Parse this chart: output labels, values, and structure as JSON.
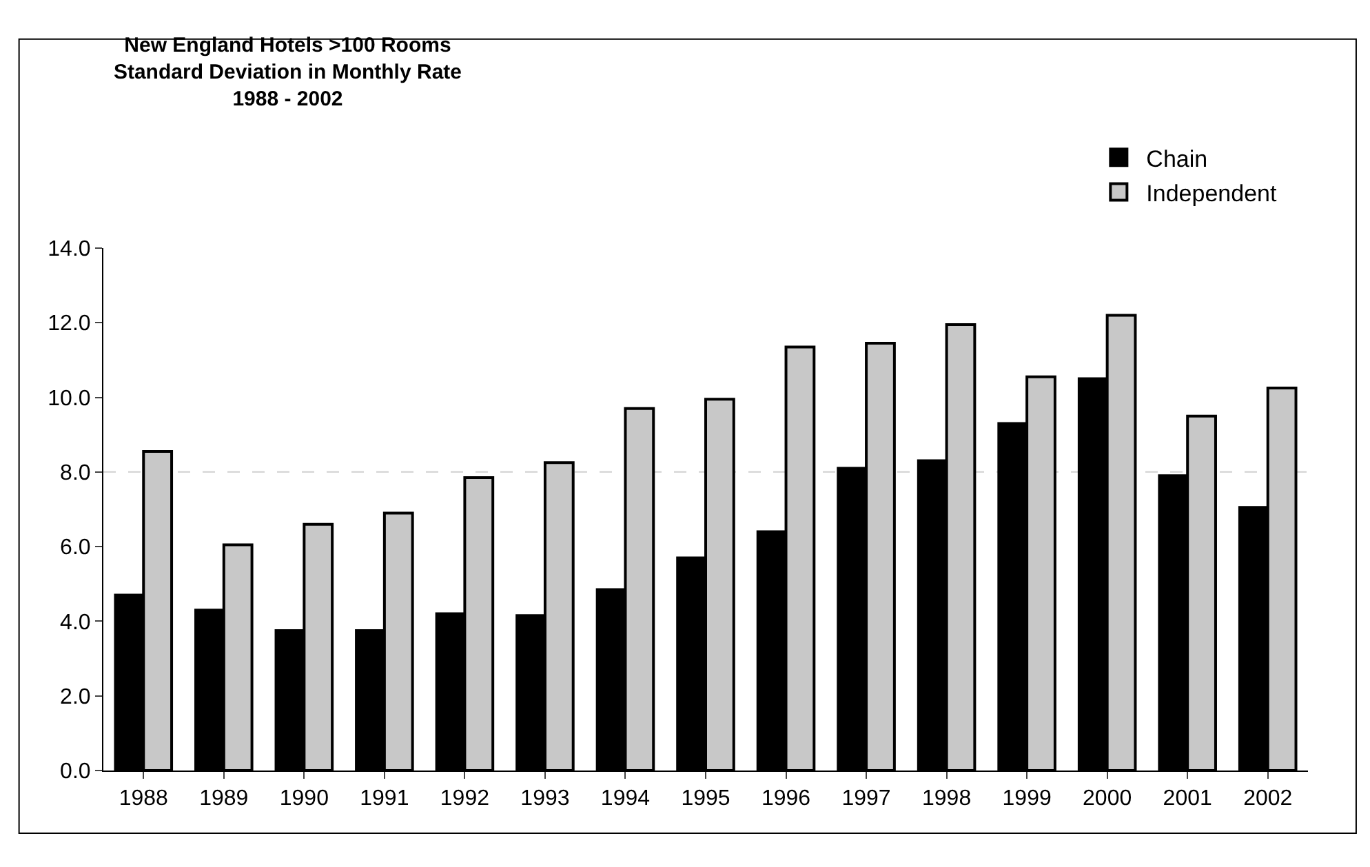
{
  "chart_data": {
    "type": "bar",
    "title": "New England Hotels >100 Rooms\nStandard Deviation in Monthly Rate\n1988 - 2002",
    "categories": [
      "1988",
      "1989",
      "1990",
      "1991",
      "1992",
      "1993",
      "1994",
      "1995",
      "1996",
      "1997",
      "1998",
      "1999",
      "2000",
      "2001",
      "2002"
    ],
    "series": [
      {
        "name": "Chain",
        "color": "#000000",
        "values": [
          4.7,
          4.3,
          3.75,
          3.75,
          4.2,
          4.15,
          4.85,
          5.7,
          6.4,
          8.1,
          8.3,
          9.3,
          10.5,
          7.9,
          7.05
        ]
      },
      {
        "name": "Independent",
        "color": "#c8c8c8",
        "values": [
          8.55,
          6.05,
          6.6,
          6.9,
          7.85,
          8.25,
          9.7,
          9.95,
          11.35,
          11.45,
          11.95,
          10.55,
          12.2,
          9.5,
          10.25
        ]
      }
    ],
    "ylim": [
      0,
      14
    ],
    "yticks": [
      {
        "value": 0,
        "label": "0.0"
      },
      {
        "value": 2,
        "label": "2.0"
      },
      {
        "value": 4,
        "label": "4.0"
      },
      {
        "value": 6,
        "label": "6.0"
      },
      {
        "value": 8,
        "label": "8.0"
      },
      {
        "value": 10,
        "label": "10.0"
      },
      {
        "value": 12,
        "label": "12.0"
      },
      {
        "value": 14,
        "label": "14.0"
      }
    ],
    "ref_lines": [
      {
        "axis": "y",
        "value": 8,
        "color": "#d0d0d0",
        "line_style": "dashed"
      }
    ],
    "legend": "top right"
  }
}
